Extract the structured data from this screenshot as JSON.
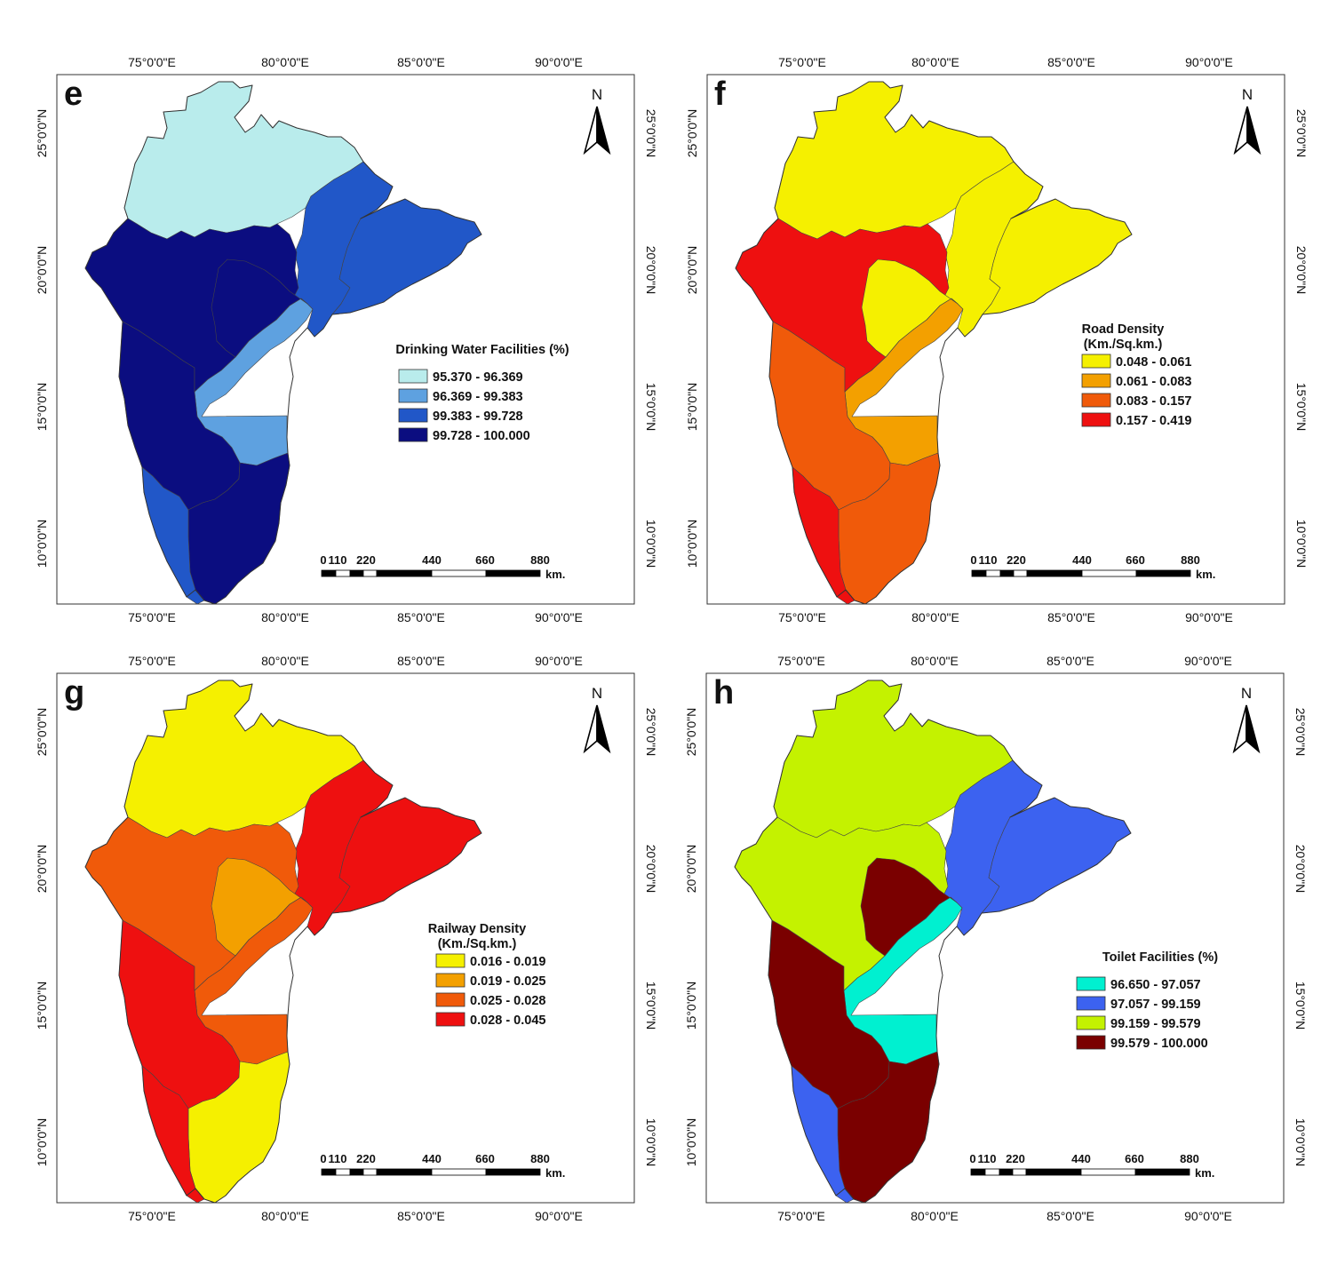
{
  "lon_labels": [
    "75°0'0\"E",
    "80°0'0\"E",
    "85°0'0\"E",
    "90°0'0\"E"
  ],
  "lat_labels": [
    "10°0'0\"N",
    "15°0'0\"N",
    "20°0'0\"N",
    "25°0'0\"N"
  ],
  "north_label": "N",
  "scalebar": {
    "ticks": [
      "0",
      "110",
      "220",
      "440",
      "660",
      "880"
    ],
    "unit": "km."
  },
  "panels": [
    {
      "letter": "e",
      "legend_title": [
        "Drinking Water Facilities (%)"
      ],
      "classes": [
        {
          "label": "95.370 - 96.369",
          "color": "#b9ecec"
        },
        {
          "label": "96.369 - 99.383",
          "color": "#5ea1e0"
        },
        {
          "label": "99.383 - 99.728",
          "color": "#2157c8"
        },
        {
          "label": "99.728 - 100.000",
          "color": "#0b0d80"
        }
      ],
      "region_class": [
        1,
        0,
        2,
        3,
        3,
        3,
        3,
        2
      ]
    },
    {
      "letter": "f",
      "legend_title": [
        "Road Density",
        "(Km./Sq.km.)"
      ],
      "classes": [
        {
          "label": "0.048 - 0.061",
          "color": "#f5f000"
        },
        {
          "label": "0.061 - 0.083",
          "color": "#f3a000"
        },
        {
          "label": "0.083 - 0.157",
          "color": "#f05a0a"
        },
        {
          "label": "0.157 - 0.419",
          "color": "#ee1010"
        }
      ],
      "region_class": [
        1,
        0,
        0,
        2,
        3,
        0,
        2,
        3
      ]
    },
    {
      "letter": "g",
      "legend_title": [
        "Railway Density",
        "(Km./Sq.km.)"
      ],
      "classes": [
        {
          "label": "0.016 - 0.019",
          "color": "#f5f000"
        },
        {
          "label": "0.019 - 0.025",
          "color": "#f3a000"
        },
        {
          "label": "0.025 - 0.028",
          "color": "#f05a0a"
        },
        {
          "label": "0.028 - 0.045",
          "color": "#ee1010"
        }
      ],
      "region_class": [
        2,
        0,
        3,
        3,
        2,
        1,
        0,
        3
      ]
    },
    {
      "letter": "h",
      "legend_title": [
        "Toilet Facilities (%)"
      ],
      "classes": [
        {
          "label": "96.650 - 97.057",
          "color": "#00f0d0"
        },
        {
          "label": "97.057 - 99.159",
          "color": "#3c62f0"
        },
        {
          "label": "99.159 - 99.579",
          "color": "#c4f200"
        },
        {
          "label": "99.579 - 100.000",
          "color": "#7a0000"
        }
      ],
      "region_class": [
        0,
        2,
        1,
        3,
        2,
        3,
        3,
        1
      ]
    }
  ]
}
